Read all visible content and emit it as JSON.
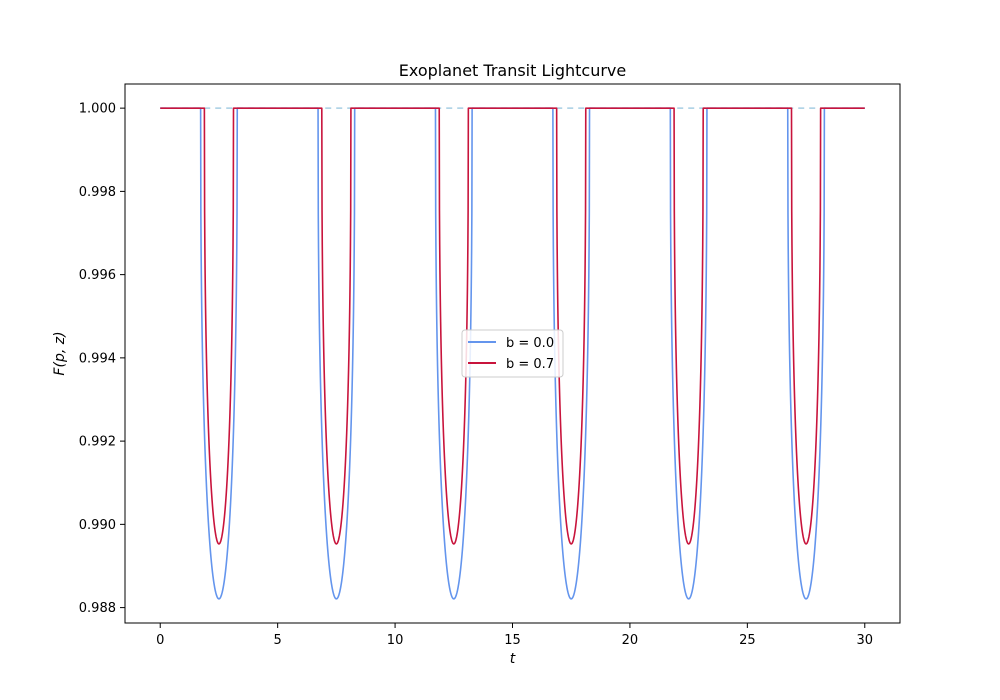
{
  "chart_data": {
    "type": "line",
    "title": "Exoplanet Transit Lightcurve",
    "xlabel": "t",
    "ylabel": "F(p, z)",
    "xlim": [
      -1.5,
      31.5
    ],
    "ylim": [
      0.98763,
      1.00058
    ],
    "xticks": [
      0,
      5,
      10,
      15,
      20,
      25,
      30
    ],
    "xtick_labels": [
      "0",
      "5",
      "10",
      "15",
      "20",
      "25",
      "30"
    ],
    "yticks": [
      0.988,
      0.99,
      0.992,
      0.994,
      0.996,
      0.998,
      1.0
    ],
    "ytick_labels": [
      "0.988",
      "0.990",
      "0.992",
      "0.994",
      "0.996",
      "0.998",
      "1.000"
    ],
    "grid": false,
    "legend_position": "center",
    "reference_line": {
      "y": 1.0,
      "style": "dashed",
      "color": "#a6cee3"
    },
    "transit_centers": [
      2.5,
      7.5,
      12.5,
      17.5,
      22.5,
      27.5
    ],
    "series": [
      {
        "name": "b = 0.0",
        "color": "#6495ed",
        "transit_minimum": 0.98821,
        "half_duration": 0.78
      },
      {
        "name": "b = 0.7",
        "color": "#c8143c",
        "transit_minimum": 0.98953,
        "half_duration": 0.62
      }
    ],
    "legend": [
      {
        "label": "b = 0.0",
        "color": "#6495ed"
      },
      {
        "label": "b = 0.7",
        "color": "#c8143c"
      }
    ]
  }
}
